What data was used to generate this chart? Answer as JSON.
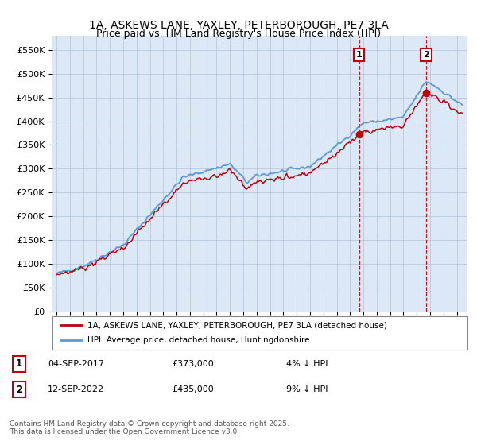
{
  "title": "1A, ASKEWS LANE, YAXLEY, PETERBOROUGH, PE7 3LA",
  "subtitle": "Price paid vs. HM Land Registry's House Price Index (HPI)",
  "ylabel_ticks": [
    "£0",
    "£50K",
    "£100K",
    "£150K",
    "£200K",
    "£250K",
    "£300K",
    "£350K",
    "£400K",
    "£450K",
    "£500K",
    "£550K"
  ],
  "ytick_values": [
    0,
    50000,
    100000,
    150000,
    200000,
    250000,
    300000,
    350000,
    400000,
    450000,
    500000,
    550000
  ],
  "ylim": [
    0,
    580000
  ],
  "bg_color": "#dce8f5",
  "grid_color": "#b0c4d8",
  "hpi_color": "#5b9bd5",
  "price_color": "#c0000c",
  "marker1_date_x": 2017.68,
  "marker2_date_x": 2022.71,
  "marker1_price": 373000,
  "marker2_price": 435000,
  "legend_label1": "1A, ASKEWS LANE, YAXLEY, PETERBOROUGH, PE7 3LA (detached house)",
  "legend_label2": "HPI: Average price, detached house, Huntingdonshire",
  "footnote": "Contains HM Land Registry data © Crown copyright and database right 2025.\nThis data is licensed under the Open Government Licence v3.0.",
  "xlim_start": 1994.7,
  "xlim_end": 2025.8,
  "title_fontsize": 10,
  "subtitle_fontsize": 9
}
